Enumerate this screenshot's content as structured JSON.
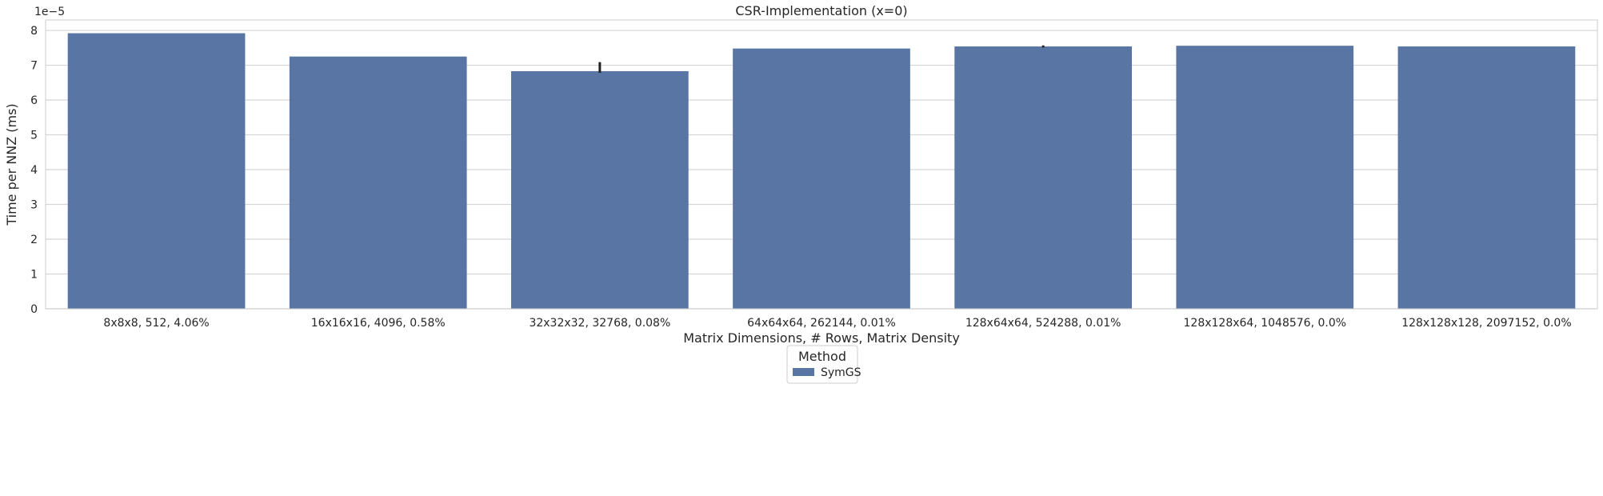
{
  "chart_data": {
    "type": "bar",
    "title": "CSR-Implementation (x=0)",
    "xlabel": "Matrix Dimensions, # Rows, Matrix Density",
    "ylabel": "Time per NNZ (ms)",
    "offset_text": "1e−5",
    "y_scale_factor": 1e-05,
    "categories": [
      "8x8x8, 512, 4.06%",
      "16x16x16, 4096, 0.58%",
      "32x32x32, 32768, 0.08%",
      "64x64x64, 262144, 0.01%",
      "128x64x64, 524288, 0.01%",
      "128x128x64, 1048576, 0.0%",
      "128x128x128, 2097152, 0.0%"
    ],
    "series": [
      {
        "name": "SymGS",
        "color": "#5975a4",
        "values": [
          7.92,
          7.25,
          6.83,
          7.48,
          7.54,
          7.56,
          7.54
        ],
        "error_bars": [
          null,
          null,
          [
            6.78,
            7.09
          ],
          null,
          [
            7.51,
            7.57
          ],
          null,
          null
        ]
      }
    ],
    "ylim": [
      0,
      8.3
    ],
    "yticks": [
      "0",
      "1",
      "2",
      "3",
      "4",
      "5",
      "6",
      "7",
      "8"
    ],
    "grid": "horizontal",
    "legend": {
      "title": "Method",
      "placement": "bottom-center"
    },
    "colors": {
      "grid": "#d5d5d5",
      "frame": "#cccccc",
      "errorbar": "#222222"
    }
  }
}
